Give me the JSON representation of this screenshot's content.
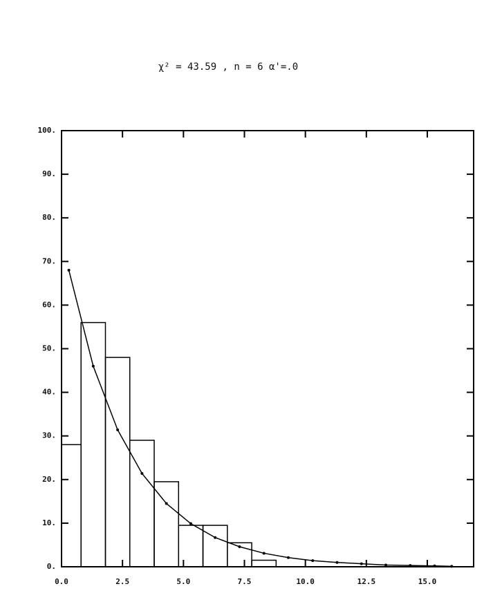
{
  "chart_data": {
    "type": "histogram",
    "title": "χ² = 43.59   , n = 6   α'=.0",
    "bins": [
      0,
      0.8,
      1.8,
      2.8,
      3.8,
      4.8,
      5.8,
      6.8,
      7.8,
      8.8
    ],
    "values": [
      28,
      56,
      48,
      29,
      19.5,
      9.5,
      9.5,
      5.5,
      1.5
    ],
    "color": "#000000",
    "fit": {
      "x": [
        0.3,
        1.3,
        2.3,
        3.3,
        4.3,
        5.3,
        6.3,
        7.3,
        8.3,
        9.3,
        10.3,
        11.3,
        12.3,
        13.3,
        14.3,
        15.3,
        16.0
      ],
      "values": [
        68,
        46,
        31.4,
        21.4,
        14.5,
        9.9,
        6.7,
        4.6,
        3.1,
        2.1,
        1.4,
        1.0,
        0.7,
        0.4,
        0.3,
        0.2,
        0.1
      ]
    },
    "xlim": [
      0,
      16.9
    ],
    "ylim": [
      0,
      100
    ],
    "xticks": [
      {
        "value": 0,
        "label": "0.0"
      },
      {
        "value": 2.5,
        "label": "2.5"
      },
      {
        "value": 5,
        "label": "5.0"
      },
      {
        "value": 7.5,
        "label": "7.5"
      },
      {
        "value": 10,
        "label": "10.0"
      },
      {
        "value": 12.5,
        "label": "12.5"
      },
      {
        "value": 15,
        "label": "15.0"
      }
    ],
    "yticks": [
      {
        "value": 0,
        "label": "0."
      },
      {
        "value": 10,
        "label": "10."
      },
      {
        "value": 20,
        "label": "20."
      },
      {
        "value": 30,
        "label": "30."
      },
      {
        "value": 40,
        "label": "40."
      },
      {
        "value": 50,
        "label": "50."
      },
      {
        "value": 60,
        "label": "60."
      },
      {
        "value": 70,
        "label": "70."
      },
      {
        "value": 80,
        "label": "80."
      },
      {
        "value": 90,
        "label": "90."
      },
      {
        "value": 100,
        "label": "100."
      }
    ]
  }
}
